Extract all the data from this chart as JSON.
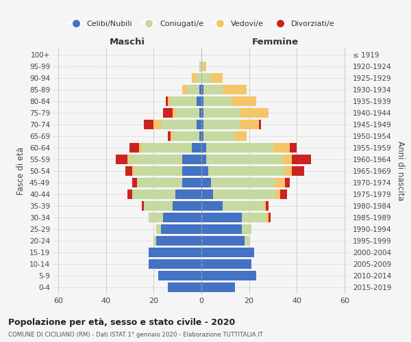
{
  "age_groups": [
    "0-4",
    "5-9",
    "10-14",
    "15-19",
    "20-24",
    "25-29",
    "30-34",
    "35-39",
    "40-44",
    "45-49",
    "50-54",
    "55-59",
    "60-64",
    "65-69",
    "70-74",
    "75-79",
    "80-84",
    "85-89",
    "90-94",
    "95-99",
    "100+"
  ],
  "birth_years": [
    "2015-2019",
    "2010-2014",
    "2005-2009",
    "2000-2004",
    "1995-1999",
    "1990-1994",
    "1985-1989",
    "1980-1984",
    "1975-1979",
    "1970-1974",
    "1965-1969",
    "1960-1964",
    "1955-1959",
    "1950-1954",
    "1945-1949",
    "1940-1944",
    "1935-1939",
    "1930-1934",
    "1925-1929",
    "1920-1924",
    "≤ 1919"
  ],
  "colors": {
    "celibe": "#4472c4",
    "coniugato": "#c5d9a0",
    "vedovo": "#f5c56a",
    "divorziato": "#cc2222"
  },
  "males": {
    "celibe": [
      14,
      18,
      22,
      22,
      19,
      17,
      16,
      12,
      11,
      8,
      8,
      8,
      4,
      1,
      2,
      1,
      2,
      1,
      0,
      0,
      0
    ],
    "coniugato": [
      0,
      0,
      0,
      0,
      1,
      2,
      6,
      12,
      18,
      19,
      20,
      22,
      21,
      11,
      15,
      10,
      11,
      5,
      2,
      1,
      0
    ],
    "vedovo": [
      0,
      0,
      0,
      0,
      0,
      0,
      0,
      0,
      0,
      0,
      1,
      1,
      1,
      1,
      3,
      1,
      1,
      2,
      2,
      0,
      0
    ],
    "divorziato": [
      0,
      0,
      0,
      0,
      0,
      0,
      0,
      1,
      2,
      2,
      3,
      5,
      4,
      1,
      4,
      4,
      1,
      0,
      0,
      0,
      0
    ]
  },
  "females": {
    "celibe": [
      14,
      23,
      21,
      22,
      18,
      17,
      17,
      9,
      5,
      4,
      3,
      2,
      2,
      1,
      1,
      1,
      1,
      1,
      0,
      0,
      0
    ],
    "coniugato": [
      0,
      0,
      0,
      0,
      2,
      4,
      10,
      17,
      26,
      27,
      32,
      32,
      28,
      13,
      15,
      15,
      12,
      8,
      4,
      1,
      0
    ],
    "vedovo": [
      0,
      0,
      0,
      0,
      0,
      0,
      1,
      1,
      2,
      4,
      3,
      4,
      7,
      5,
      8,
      12,
      10,
      10,
      5,
      1,
      0
    ],
    "divorziato": [
      0,
      0,
      0,
      0,
      0,
      0,
      1,
      1,
      3,
      2,
      5,
      8,
      3,
      0,
      1,
      0,
      0,
      0,
      0,
      0,
      0
    ]
  },
  "xlim": 62,
  "title": "Popolazione per età, sesso e stato civile - 2020",
  "subtitle": "COMUNE DI CICILIANO (RM) - Dati ISTAT 1° gennaio 2020 - Elaborazione TUTTITALIA.IT",
  "xlabel_left": "Maschi",
  "xlabel_right": "Femmine",
  "ylabel_left": "Fasce di età",
  "ylabel_right": "Anni di nascita",
  "legend_labels": [
    "Celibi/Nubili",
    "Coniugati/e",
    "Vedovi/e",
    "Divorziati/e"
  ],
  "bg_color": "#f5f5f5",
  "grid_color": "#cccccc"
}
